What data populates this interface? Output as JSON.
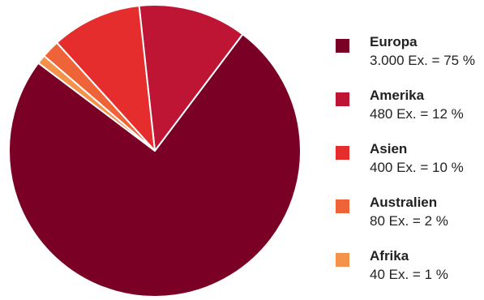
{
  "chart_data": {
    "type": "pie",
    "slices": [
      {
        "label": "Europa",
        "value": 75,
        "detail": "3.000 Ex. = 75 %",
        "color": "#7a0026"
      },
      {
        "label": "Amerika",
        "value": 12,
        "detail": "480 Ex. = 12 %",
        "color": "#bf1535"
      },
      {
        "label": "Asien",
        "value": 10,
        "detail": "400 Ex. = 10 %",
        "color": "#e52d2e"
      },
      {
        "label": "Australien",
        "value": 2,
        "detail": "80 Ex. = 2 %",
        "color": "#ee6338"
      },
      {
        "label": "Afrika",
        "value": 1,
        "detail": "40 Ex. = 1 %",
        "color": "#f4924c"
      }
    ],
    "legend_position": "right"
  }
}
